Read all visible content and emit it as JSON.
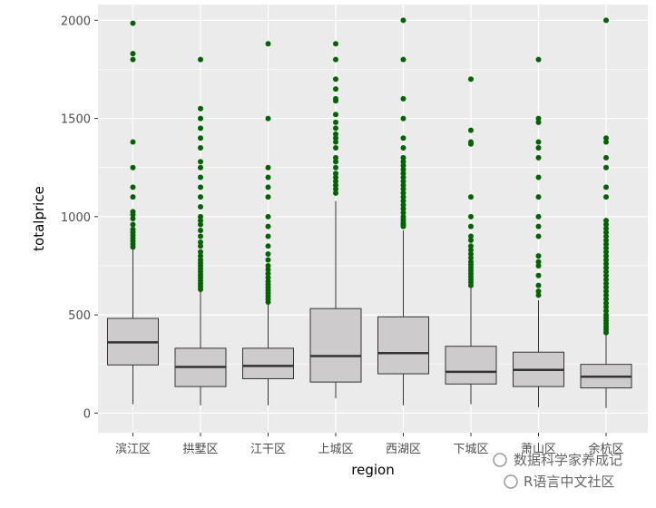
{
  "chart_data": {
    "type": "boxplot",
    "title": "",
    "xlabel": "region",
    "ylabel": "totalprice",
    "ylim": [
      -100,
      2080
    ],
    "yticks": [
      0,
      500,
      1000,
      1500,
      2000
    ],
    "grid": true,
    "legend": "none",
    "colors": {
      "panel": "#ebebeb",
      "grid": "#ffffff",
      "box_fill": "#cdcbcc",
      "box_stroke": "#333333",
      "outlier": "#006400"
    },
    "categories": [
      "滨江区",
      "拱墅区",
      "江干区",
      "上城区",
      "西湖区",
      "下城区",
      "萧山区",
      "余杭区"
    ],
    "boxes": [
      {
        "category": "滨江区",
        "whisker_low": 45,
        "q1": 245,
        "median": 360,
        "q3": 482,
        "whisker_high": 835,
        "outliers": [
          845,
          860,
          875,
          890,
          905,
          920,
          935,
          960,
          990,
          1010,
          1025,
          1100,
          1150,
          1250,
          1380,
          1800,
          1830,
          1985
        ]
      },
      {
        "category": "拱墅区",
        "whisker_low": 40,
        "q1": 135,
        "median": 235,
        "q3": 330,
        "whisker_high": 620,
        "outliers": [
          630,
          645,
          660,
          675,
          690,
          705,
          720,
          735,
          750,
          765,
          780,
          800,
          820,
          850,
          870,
          900,
          930,
          960,
          980,
          1000,
          1050,
          1100,
          1150,
          1200,
          1250,
          1280,
          1350,
          1400,
          1450,
          1500,
          1550,
          1800
        ]
      },
      {
        "category": "江干区",
        "whisker_low": 40,
        "q1": 175,
        "median": 240,
        "q3": 330,
        "whisker_high": 555,
        "outliers": [
          565,
          580,
          595,
          610,
          625,
          640,
          655,
          670,
          690,
          710,
          730,
          750,
          780,
          810,
          850,
          900,
          950,
          1000,
          1100,
          1150,
          1200,
          1250,
          1500,
          1880
        ]
      },
      {
        "category": "上城区",
        "whisker_low": 75,
        "q1": 158,
        "median": 290,
        "q3": 532,
        "whisker_high": 1080,
        "outliers": [
          1120,
          1140,
          1160,
          1180,
          1200,
          1220,
          1250,
          1280,
          1300,
          1350,
          1380,
          1400,
          1420,
          1450,
          1480,
          1520,
          1590,
          1600,
          1650,
          1700,
          1800,
          1880
        ]
      },
      {
        "category": "西湖区",
        "whisker_low": 40,
        "q1": 200,
        "median": 305,
        "q3": 490,
        "whisker_high": 930,
        "outliers": [
          950,
          960,
          970,
          985,
          1000,
          1020,
          1040,
          1060,
          1080,
          1100,
          1120,
          1140,
          1160,
          1180,
          1200,
          1220,
          1240,
          1260,
          1280,
          1300,
          1350,
          1400,
          1500,
          1600,
          1800,
          2000
        ]
      },
      {
        "category": "下城区",
        "whisker_low": 45,
        "q1": 148,
        "median": 210,
        "q3": 340,
        "whisker_high": 640,
        "outliers": [
          650,
          665,
          680,
          695,
          710,
          725,
          740,
          755,
          770,
          790,
          810,
          830,
          850,
          880,
          900,
          950,
          1000,
          1100,
          1370,
          1380,
          1440,
          1700
        ]
      },
      {
        "category": "萧山区",
        "whisker_low": 30,
        "q1": 135,
        "median": 220,
        "q3": 310,
        "whisker_high": 575,
        "outliers": [
          600,
          620,
          650,
          700,
          750,
          770,
          800,
          900,
          950,
          1000,
          1100,
          1200,
          1300,
          1350,
          1380,
          1480,
          1500,
          1800
        ]
      },
      {
        "category": "余杭区",
        "whisker_low": 25,
        "q1": 128,
        "median": 185,
        "q3": 248,
        "whisker_high": 400,
        "outliers": [
          410,
          425,
          440,
          455,
          470,
          485,
          500,
          520,
          540,
          560,
          580,
          600,
          620,
          640,
          660,
          680,
          700,
          720,
          740,
          760,
          780,
          800,
          820,
          840,
          860,
          880,
          900,
          920,
          940,
          960,
          980,
          1100,
          1150,
          1250,
          1300,
          1380,
          1400,
          2000
        ]
      }
    ]
  },
  "watermark": {
    "line1": "数据科学家养成记",
    "line2": "R语言中文社区"
  }
}
